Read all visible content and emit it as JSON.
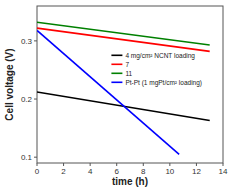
{
  "chart_data": {
    "type": "line",
    "xlabel": "time (h)",
    "ylabel": "Cell voltage (V)",
    "series": [
      {
        "name": "4 mg/cm² NCNT loading",
        "color": "black",
        "x": [
          0,
          13
        ],
        "values": [
          0.212,
          0.163
        ]
      },
      {
        "name": "7",
        "color": "red",
        "x": [
          0,
          13
        ],
        "values": [
          0.322,
          0.282
        ]
      },
      {
        "name": "11",
        "color": "green",
        "x": [
          0,
          13
        ],
        "values": [
          0.332,
          0.293
        ]
      },
      {
        "name": "Pt-Pt (1 mgPt/cm² loading)",
        "color": "blue",
        "x": [
          0,
          10.7
        ],
        "values": [
          0.318,
          0.105
        ]
      }
    ],
    "xlim": [
      0,
      14
    ],
    "ylim": [
      0.09,
      0.36
    ],
    "xticks": [
      0,
      2,
      4,
      6,
      8,
      10,
      12,
      14
    ],
    "yticks": [
      0.1,
      0.2,
      0.3
    ],
    "grid": false,
    "legend": "center"
  }
}
